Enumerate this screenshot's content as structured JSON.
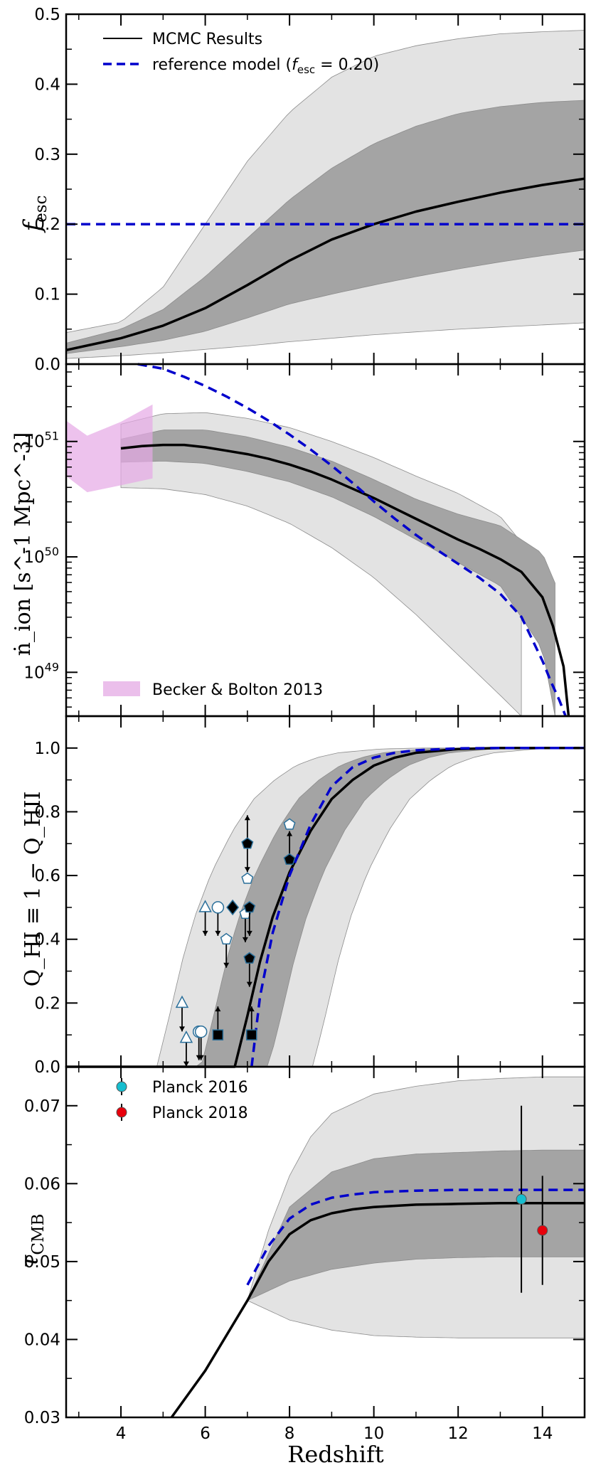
{
  "chart_data": [
    {
      "type": "line",
      "panel": "fesc",
      "ylabel_main": "f",
      "ylabel_sub": "esc",
      "xlim": [
        2.7,
        15
      ],
      "ylim": [
        0,
        0.5
      ],
      "yticks": [
        "0.0",
        "0.1",
        "0.2",
        "0.3",
        "0.4",
        "0.5"
      ],
      "legend": {
        "mcmc": "MCMC Results",
        "ref_prefix": "reference model (",
        "ref_var": "f",
        "ref_sub": "esc",
        "ref_suffix": " = 0.20)"
      },
      "series": [
        {
          "name": "MCMC median",
          "x": [
            2.7,
            4,
            5,
            6,
            7,
            8,
            9,
            10,
            11,
            12,
            13,
            14,
            15
          ],
          "y": [
            0.02,
            0.037,
            0.055,
            0.08,
            0.113,
            0.148,
            0.178,
            0.2,
            0.218,
            0.232,
            0.245,
            0.256,
            0.265
          ]
        },
        {
          "name": "1-sigma lower",
          "x": [
            2.7,
            4,
            5,
            6,
            7,
            8,
            9,
            10,
            11,
            12,
            13,
            14,
            15
          ],
          "y": [
            0.015,
            0.025,
            0.034,
            0.047,
            0.066,
            0.086,
            0.1,
            0.113,
            0.125,
            0.136,
            0.146,
            0.155,
            0.163
          ]
        },
        {
          "name": "1-sigma upper",
          "x": [
            2.7,
            4,
            5,
            6,
            7,
            8,
            9,
            10,
            11,
            12,
            13,
            14,
            15
          ],
          "y": [
            0.03,
            0.05,
            0.078,
            0.125,
            0.18,
            0.235,
            0.28,
            0.315,
            0.34,
            0.358,
            0.368,
            0.374,
            0.377
          ]
        },
        {
          "name": "2-sigma lower",
          "x": [
            2.7,
            4,
            5,
            6,
            7,
            8,
            9,
            10,
            11,
            12,
            13,
            14,
            15
          ],
          "y": [
            0.008,
            0.012,
            0.016,
            0.021,
            0.026,
            0.032,
            0.037,
            0.042,
            0.046,
            0.05,
            0.053,
            0.056,
            0.059
          ]
        },
        {
          "name": "2-sigma upper",
          "x": [
            2.7,
            4,
            5,
            6,
            7,
            8,
            9,
            10,
            11,
            12,
            13,
            14,
            15
          ],
          "y": [
            0.045,
            0.06,
            0.11,
            0.2,
            0.29,
            0.36,
            0.41,
            0.44,
            0.455,
            0.465,
            0.472,
            0.475,
            0.477
          ]
        },
        {
          "name": "reference model",
          "x": [
            2.7,
            15
          ],
          "y": [
            0.2,
            0.2
          ]
        }
      ]
    },
    {
      "type": "line",
      "panel": "nion",
      "yscale": "log",
      "ylabel": "ṅ_ion [s^-1 Mpc^-3]",
      "xlim": [
        2.7,
        15
      ],
      "ylim_log10": [
        48.62,
        51.67
      ],
      "yticks_log10": [
        49,
        50,
        51
      ],
      "legend": {
        "becker": "Becker & Bolton 2013"
      },
      "series": [
        {
          "name": "MCMC median",
          "x": [
            4,
            4.5,
            5,
            5.5,
            6,
            6.5,
            7,
            7.5,
            8,
            8.5,
            9,
            9.5,
            10,
            10.5,
            11,
            11.5,
            12,
            12.5,
            13,
            13.5,
            14,
            14.25,
            14.5,
            14.62
          ],
          "y": [
            50.94,
            50.96,
            50.97,
            50.97,
            50.95,
            50.92,
            50.89,
            50.85,
            50.8,
            50.74,
            50.67,
            50.59,
            50.51,
            50.42,
            50.33,
            50.24,
            50.15,
            50.07,
            49.98,
            49.87,
            49.65,
            49.4,
            49.05,
            48.62
          ]
        },
        {
          "name": "1-sigma lower",
          "x": [
            4,
            5,
            6,
            7,
            8,
            9,
            10,
            11,
            12,
            13,
            14,
            14.3
          ],
          "y": [
            50.82,
            50.83,
            50.81,
            50.74,
            50.65,
            50.52,
            50.35,
            50.15,
            49.95,
            49.75,
            49.2,
            48.62
          ]
        },
        {
          "name": "1-sigma upper",
          "x": [
            4,
            5,
            6,
            7,
            8,
            9,
            10,
            11,
            12,
            13,
            14,
            14.5,
            14.9
          ],
          "y": [
            51.02,
            51.1,
            51.1,
            51.04,
            50.95,
            50.83,
            50.67,
            50.5,
            50.37,
            50.27,
            50.03,
            49.6,
            48.62
          ]
        },
        {
          "name": "2-sigma lower",
          "x": [
            4,
            5,
            6,
            7,
            8,
            9,
            10,
            11,
            12,
            13,
            13.5
          ],
          "y": [
            50.6,
            50.59,
            50.54,
            50.44,
            50.29,
            50.08,
            49.82,
            49.5,
            49.15,
            48.8,
            48.62
          ]
        },
        {
          "name": "2-sigma upper",
          "x": [
            4,
            5,
            6,
            7,
            8,
            9,
            10,
            11,
            12,
            13,
            14,
            14.8,
            15
          ],
          "y": [
            51.15,
            51.24,
            51.25,
            51.2,
            51.12,
            51.0,
            50.86,
            50.7,
            50.55,
            50.35,
            49.9,
            49.0,
            48.62
          ]
        },
        {
          "name": "reference model",
          "x": [
            4.4,
            5,
            5.5,
            6,
            6.5,
            7,
            7.5,
            8,
            8.5,
            9,
            9.5,
            10,
            10.5,
            11,
            11.5,
            12,
            12.5,
            13,
            13.5,
            14,
            14.2,
            14.4,
            14.55
          ],
          "y": [
            51.67,
            51.63,
            51.56,
            51.48,
            51.39,
            51.29,
            51.18,
            51.06,
            50.93,
            50.79,
            50.64,
            50.48,
            50.33,
            50.19,
            50.06,
            49.94,
            49.82,
            49.68,
            49.48,
            49.1,
            48.92,
            48.76,
            48.62
          ]
        },
        {
          "name": "Becker & Bolton 2013 lower",
          "x": [
            2.7,
            3.2,
            4,
            4.75
          ],
          "y": [
            50.7,
            50.56,
            50.62,
            50.68
          ]
        },
        {
          "name": "Becker & Bolton 2013 upper",
          "x": [
            2.7,
            3.2,
            4,
            4.75
          ],
          "y": [
            51.18,
            51.05,
            51.17,
            51.32
          ]
        }
      ]
    },
    {
      "type": "line",
      "panel": "QHI",
      "ylabel": "Q_HI ≡ 1 − Q_HII",
      "xlim": [
        2.7,
        15
      ],
      "ylim": [
        0,
        1.1
      ],
      "yticks": [
        "0.0",
        "0.2",
        "0.4",
        "0.6",
        "0.8",
        "1.0"
      ],
      "series": [
        {
          "name": "MCMC median",
          "x": [
            2.7,
            6.7,
            7.0,
            7.3,
            7.6,
            8.0,
            8.5,
            9,
            9.5,
            10,
            10.5,
            11,
            12,
            13,
            15
          ],
          "y": [
            0,
            0,
            0.16,
            0.33,
            0.47,
            0.61,
            0.74,
            0.84,
            0.9,
            0.945,
            0.97,
            0.985,
            0.997,
            1.0,
            1.0
          ]
        },
        {
          "name": "reference model",
          "x": [
            7.1,
            7.3,
            7.6,
            8.0,
            8.5,
            9,
            9.5,
            10,
            10.5,
            11,
            12,
            13,
            15
          ],
          "y": [
            0,
            0.22,
            0.42,
            0.6,
            0.76,
            0.88,
            0.94,
            0.97,
            0.985,
            0.993,
            0.999,
            1.0,
            1.0
          ]
        }
      ],
      "markers": [
        {
          "x": 5.45,
          "y": 0.2,
          "shape": "triangle",
          "fill": "#ffffff",
          "arrow": "down"
        },
        {
          "x": 5.55,
          "y": 0.09,
          "shape": "triangle",
          "fill": "#ffffff",
          "arrow": "down"
        },
        {
          "x": 5.85,
          "y": 0.11,
          "shape": "circle",
          "fill": "#ffffff",
          "arrow": "down"
        },
        {
          "x": 5.9,
          "y": 0.11,
          "shape": "circle",
          "fill": "#ffffff",
          "arrow": "down"
        },
        {
          "x": 6.0,
          "y": 0.5,
          "shape": "triangle",
          "fill": "#ffffff",
          "arrow": "down"
        },
        {
          "x": 6.3,
          "y": 0.5,
          "shape": "circle",
          "fill": "#ffffff",
          "arrow": "down"
        },
        {
          "x": 6.3,
          "y": 0.1,
          "shape": "square",
          "fill": "#000000",
          "arrow": "up"
        },
        {
          "x": 6.5,
          "y": 0.4,
          "shape": "pentagon",
          "fill": "#ffffff",
          "arrow": "down"
        },
        {
          "x": 6.65,
          "y": 0.5,
          "shape": "diamond",
          "fill": "#000000",
          "arrow": "none"
        },
        {
          "x": 7.0,
          "y": 0.7,
          "shape": "pentagon",
          "fill": "#000000",
          "arrow": "both"
        },
        {
          "x": 7.0,
          "y": 0.59,
          "shape": "pentagon",
          "fill": "#ffffff",
          "arrow": "none"
        },
        {
          "x": 6.95,
          "y": 0.48,
          "shape": "pentagon",
          "fill": "#ffffff",
          "arrow": "down"
        },
        {
          "x": 7.05,
          "y": 0.5,
          "shape": "pentagon",
          "fill": "#000000",
          "arrow": "down"
        },
        {
          "x": 7.05,
          "y": 0.34,
          "shape": "pentagon",
          "fill": "#000000",
          "arrow": "down"
        },
        {
          "x": 7.1,
          "y": 0.1,
          "shape": "square",
          "fill": "#000000",
          "arrow": "up"
        },
        {
          "x": 8.0,
          "y": 0.76,
          "shape": "pentagon",
          "fill": "#ffffff",
          "arrow": "none"
        },
        {
          "x": 8.0,
          "y": 0.65,
          "shape": "pentagon",
          "fill": "#000000",
          "arrow": "up"
        }
      ]
    },
    {
      "type": "line",
      "panel": "tau",
      "ylabel_main": "τ",
      "ylabel_sub": "CMB",
      "xlabel": "Redshift",
      "xlim": [
        2.7,
        15
      ],
      "ylim": [
        0.03,
        0.075
      ],
      "yticks": [
        "0.03",
        "0.04",
        "0.05",
        "0.06",
        "0.07"
      ],
      "xticks": [
        "4",
        "6",
        "8",
        "10",
        "12",
        "14"
      ],
      "legend": {
        "p16": "Planck 2016",
        "p18": "Planck 2018"
      },
      "series": [
        {
          "name": "MCMC median",
          "x": [
            5.2,
            6,
            7,
            7.5,
            8,
            8.5,
            9,
            9.5,
            10,
            11,
            12,
            13,
            14,
            15
          ],
          "y": [
            0.03,
            0.036,
            0.045,
            0.05,
            0.0535,
            0.0553,
            0.0562,
            0.0567,
            0.057,
            0.0573,
            0.0574,
            0.0575,
            0.0575,
            0.0575
          ]
        },
        {
          "name": "reference model",
          "x": [
            7.0,
            7.5,
            8,
            8.5,
            9,
            9.5,
            10,
            11,
            12,
            13,
            14,
            15
          ],
          "y": [
            0.047,
            0.052,
            0.0555,
            0.0573,
            0.0582,
            0.0586,
            0.0589,
            0.0591,
            0.0592,
            0.0592,
            0.0592,
            0.0592
          ]
        },
        {
          "name": "1-sigma lower",
          "x": [
            7,
            8,
            9,
            10,
            11,
            12,
            13,
            14,
            15
          ],
          "y": [
            0.045,
            0.0475,
            0.049,
            0.0498,
            0.0503,
            0.0505,
            0.0506,
            0.0506,
            0.0506
          ]
        },
        {
          "name": "1-sigma upper",
          "x": [
            7,
            8,
            9,
            10,
            11,
            12,
            13,
            14,
            15
          ],
          "y": [
            0.045,
            0.057,
            0.0615,
            0.0632,
            0.0638,
            0.064,
            0.0642,
            0.0643,
            0.0643
          ]
        },
        {
          "name": "2-sigma lower",
          "x": [
            7,
            8,
            9,
            10,
            11,
            12,
            13,
            14,
            15
          ],
          "y": [
            0.045,
            0.0425,
            0.0412,
            0.0405,
            0.0403,
            0.0402,
            0.0402,
            0.0402,
            0.0402
          ]
        },
        {
          "name": "2-sigma upper",
          "x": [
            7,
            7.5,
            8,
            8.5,
            9,
            10,
            11,
            12,
            13,
            14,
            15
          ],
          "y": [
            0.045,
            0.054,
            0.061,
            0.066,
            0.069,
            0.0715,
            0.0725,
            0.0732,
            0.0735,
            0.0737,
            0.0737
          ]
        }
      ],
      "points": [
        {
          "name": "Planck 2016",
          "x": 13.5,
          "y": 0.058,
          "err": 0.012,
          "color": "#17becf"
        },
        {
          "name": "Planck 2018",
          "x": 14.0,
          "y": 0.054,
          "err": 0.007,
          "color": "#e8000b"
        }
      ]
    }
  ]
}
